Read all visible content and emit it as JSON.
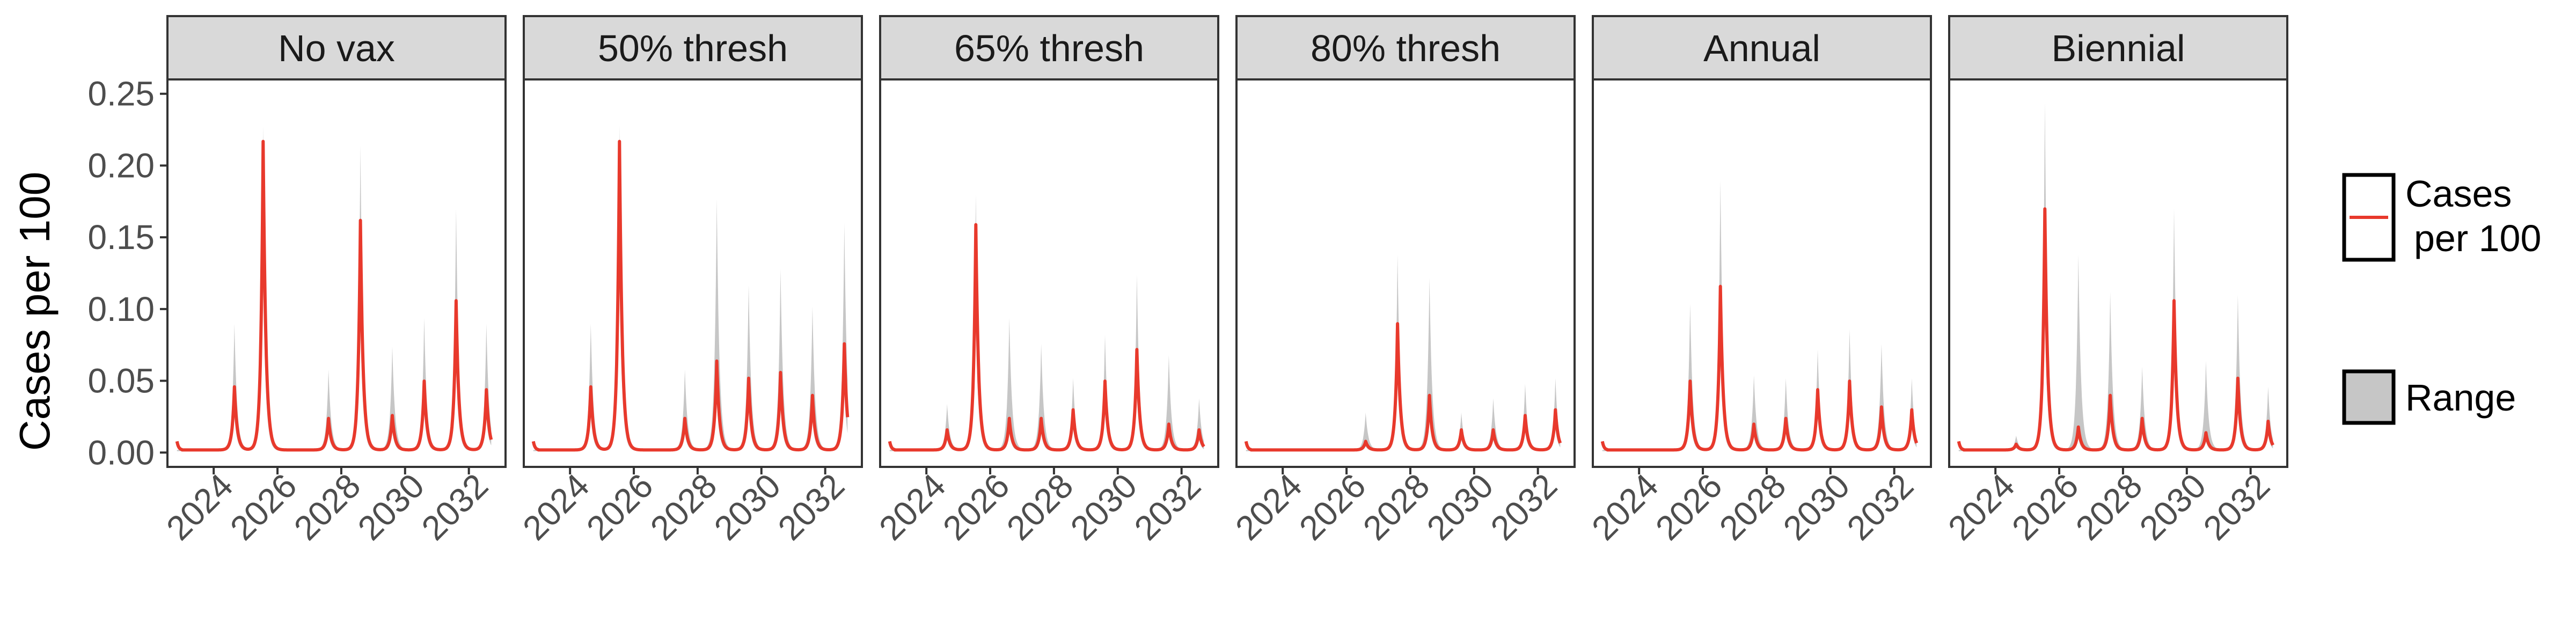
{
  "chart_data": {
    "type": "line",
    "ylabel": "Cases per 100",
    "xlabel": "",
    "ylim": [
      -0.01,
      0.26
    ],
    "xlim": [
      2022.55,
      2033.15
    ],
    "yticks": [
      {
        "value": 0.0,
        "label": "0.00"
      },
      {
        "value": 0.05,
        "label": "0.05"
      },
      {
        "value": 0.1,
        "label": "0.10"
      },
      {
        "value": 0.15,
        "label": "0.15"
      },
      {
        "value": 0.2,
        "label": "0.20"
      },
      {
        "value": 0.25,
        "label": "0.25"
      }
    ],
    "xticks": [
      {
        "value": 2024,
        "label": "2024"
      },
      {
        "value": 2026,
        "label": "2026"
      },
      {
        "value": 2028,
        "label": "2028"
      },
      {
        "value": 2030,
        "label": "2030"
      },
      {
        "value": 2032,
        "label": "2032"
      }
    ],
    "legend": {
      "placement": "right",
      "line_label_line1": "Cases",
      "line_label_line2": "per 100",
      "range_label": "Range"
    },
    "colors": {
      "line": "#e8392c",
      "ribbon": "#c6c6c6",
      "strip_fill": "#d9d9d9",
      "grid": "#ffffff"
    },
    "baseline": 0.003,
    "panels": [
      {
        "title": "No vax",
        "peaks": [
          {
            "x": 2024.65,
            "y": 0.044,
            "upper": 0.088
          },
          {
            "x": 2025.55,
            "y": 0.215,
            "upper": 0.226
          },
          {
            "x": 2027.6,
            "y": 0.022,
            "upper": 0.056
          },
          {
            "x": 2028.6,
            "y": 0.16,
            "upper": 0.212
          },
          {
            "x": 2029.6,
            "y": 0.024,
            "upper": 0.072
          },
          {
            "x": 2030.6,
            "y": 0.048,
            "upper": 0.092
          },
          {
            "x": 2031.6,
            "y": 0.104,
            "upper": 0.168
          },
          {
            "x": 2032.55,
            "y": 0.042,
            "upper": 0.088
          }
        ]
      },
      {
        "title": "50% thresh",
        "peaks": [
          {
            "x": 2024.65,
            "y": 0.044,
            "upper": 0.088
          },
          {
            "x": 2025.55,
            "y": 0.215,
            "upper": 0.226
          },
          {
            "x": 2027.6,
            "y": 0.022,
            "upper": 0.056
          },
          {
            "x": 2028.6,
            "y": 0.062,
            "upper": 0.175
          },
          {
            "x": 2029.6,
            "y": 0.05,
            "upper": 0.115
          },
          {
            "x": 2030.6,
            "y": 0.054,
            "upper": 0.126
          },
          {
            "x": 2031.6,
            "y": 0.038,
            "upper": 0.1
          },
          {
            "x": 2032.6,
            "y": 0.074,
            "upper": 0.158
          }
        ]
      },
      {
        "title": "65% thresh",
        "peaks": [
          {
            "x": 2024.65,
            "y": 0.014,
            "upper": 0.032
          },
          {
            "x": 2025.55,
            "y": 0.157,
            "upper": 0.178
          },
          {
            "x": 2026.6,
            "y": 0.022,
            "upper": 0.092
          },
          {
            "x": 2027.6,
            "y": 0.022,
            "upper": 0.074
          },
          {
            "x": 2028.6,
            "y": 0.028,
            "upper": 0.05
          },
          {
            "x": 2029.6,
            "y": 0.048,
            "upper": 0.08
          },
          {
            "x": 2030.6,
            "y": 0.07,
            "upper": 0.122
          },
          {
            "x": 2031.6,
            "y": 0.018,
            "upper": 0.066
          },
          {
            "x": 2032.55,
            "y": 0.014,
            "upper": 0.036
          }
        ]
      },
      {
        "title": "80% thresh",
        "peaks": [
          {
            "x": 2026.6,
            "y": 0.006,
            "upper": 0.026
          },
          {
            "x": 2027.6,
            "y": 0.088,
            "upper": 0.136
          },
          {
            "x": 2028.6,
            "y": 0.038,
            "upper": 0.12
          },
          {
            "x": 2029.6,
            "y": 0.014,
            "upper": 0.026
          },
          {
            "x": 2030.6,
            "y": 0.014,
            "upper": 0.036
          },
          {
            "x": 2031.6,
            "y": 0.024,
            "upper": 0.046
          },
          {
            "x": 2032.55,
            "y": 0.028,
            "upper": 0.05
          }
        ]
      },
      {
        "title": "Annual",
        "peaks": [
          {
            "x": 2025.6,
            "y": 0.048,
            "upper": 0.102
          },
          {
            "x": 2026.55,
            "y": 0.114,
            "upper": 0.188
          },
          {
            "x": 2027.6,
            "y": 0.018,
            "upper": 0.052
          },
          {
            "x": 2028.6,
            "y": 0.022,
            "upper": 0.05
          },
          {
            "x": 2029.6,
            "y": 0.042,
            "upper": 0.07
          },
          {
            "x": 2030.6,
            "y": 0.048,
            "upper": 0.084
          },
          {
            "x": 2031.6,
            "y": 0.03,
            "upper": 0.074
          },
          {
            "x": 2032.55,
            "y": 0.028,
            "upper": 0.05
          }
        ]
      },
      {
        "title": "Biennial",
        "peaks": [
          {
            "x": 2024.65,
            "y": 0.004,
            "upper": 0.01
          },
          {
            "x": 2025.55,
            "y": 0.168,
            "upper": 0.242
          },
          {
            "x": 2026.6,
            "y": 0.016,
            "upper": 0.136
          },
          {
            "x": 2027.6,
            "y": 0.038,
            "upper": 0.11
          },
          {
            "x": 2028.6,
            "y": 0.022,
            "upper": 0.058
          },
          {
            "x": 2029.6,
            "y": 0.104,
            "upper": 0.168
          },
          {
            "x": 2030.6,
            "y": 0.012,
            "upper": 0.062
          },
          {
            "x": 2031.6,
            "y": 0.05,
            "upper": 0.108
          },
          {
            "x": 2032.55,
            "y": 0.02,
            "upper": 0.044
          }
        ]
      }
    ]
  }
}
